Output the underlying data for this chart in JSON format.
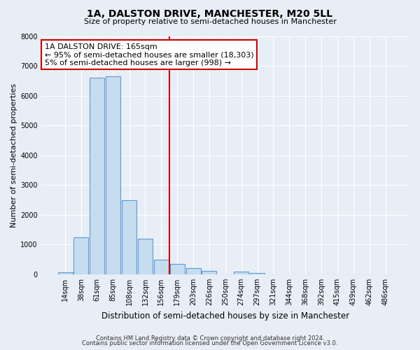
{
  "title": "1A, DALSTON DRIVE, MANCHESTER, M20 5LL",
  "subtitle": "Size of property relative to semi-detached houses in Manchester",
  "xlabel": "Distribution of semi-detached houses by size in Manchester",
  "ylabel": "Number of semi-detached properties",
  "footnote1": "Contains HM Land Registry data © Crown copyright and database right 2024.",
  "footnote2": "Contains public sector information licensed under the Open Government Licence v3.0.",
  "bar_labels": [
    "14sqm",
    "38sqm",
    "61sqm",
    "85sqm",
    "108sqm",
    "132sqm",
    "156sqm",
    "179sqm",
    "203sqm",
    "226sqm",
    "250sqm",
    "274sqm",
    "297sqm",
    "321sqm",
    "344sqm",
    "368sqm",
    "392sqm",
    "415sqm",
    "439sqm",
    "462sqm",
    "486sqm"
  ],
  "bar_values": [
    75,
    1250,
    6600,
    6650,
    2500,
    1200,
    500,
    350,
    200,
    110,
    0,
    100,
    50,
    0,
    0,
    0,
    0,
    0,
    0,
    0,
    0
  ],
  "bar_color": "#c6dcef",
  "bar_edge_color": "#5b9bd5",
  "vline_x": 6.5,
  "vline_color": "#cc0000",
  "ylim": [
    0,
    8000
  ],
  "yticks": [
    0,
    1000,
    2000,
    3000,
    4000,
    5000,
    6000,
    7000,
    8000
  ],
  "annotation_title": "1A DALSTON DRIVE: 165sqm",
  "annotation_line1": "← 95% of semi-detached houses are smaller (18,303)",
  "annotation_line2": "5% of semi-detached houses are larger (998) →",
  "bg_color": "#e8eef6",
  "plot_bg_color": "#e8eef6",
  "grid_color": "#ffffff",
  "title_fontsize": 10,
  "subtitle_fontsize": 8,
  "ylabel_fontsize": 8,
  "xlabel_fontsize": 8.5,
  "tick_fontsize": 7,
  "annot_fontsize": 8,
  "footnote_fontsize": 6
}
